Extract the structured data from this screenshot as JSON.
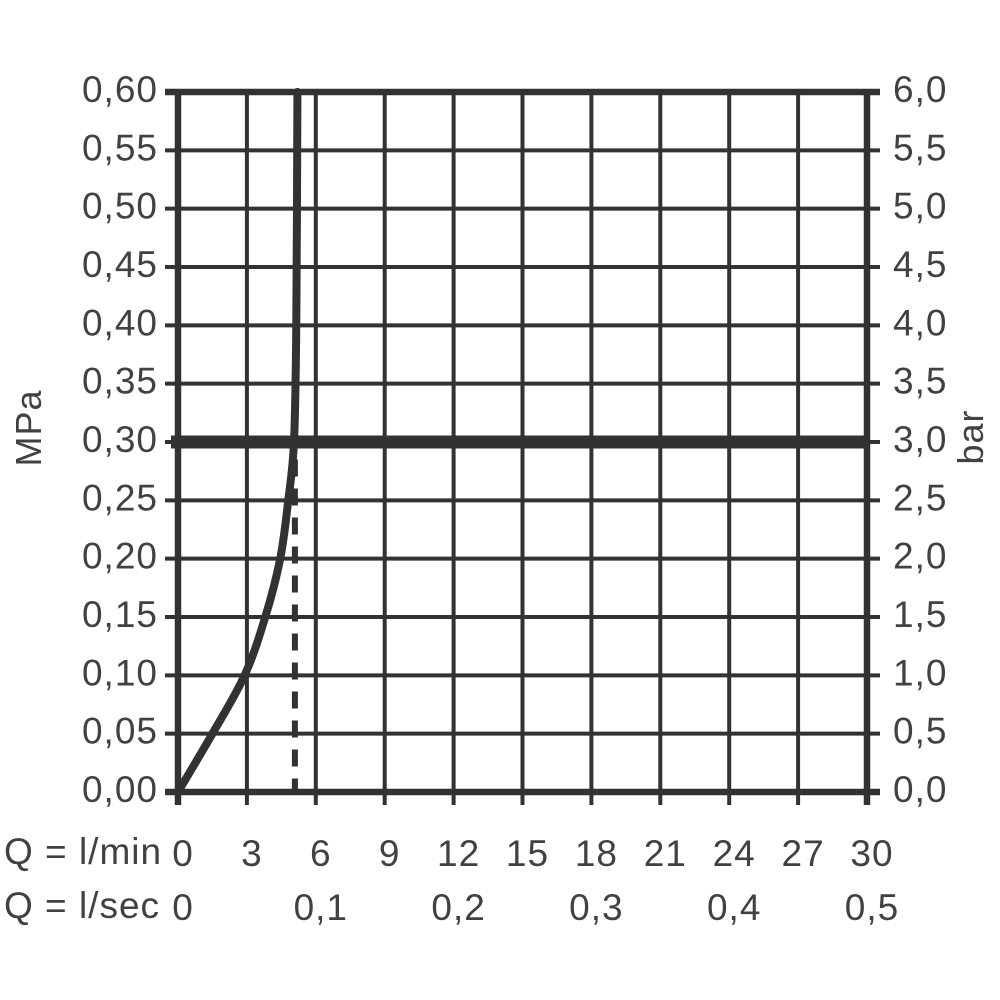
{
  "chart_data": {
    "type": "line",
    "title": "",
    "x": {
      "min": 0,
      "max": 30,
      "gridline_step": 3,
      "rows": [
        {
          "title": "Q = l/min",
          "ticks": [
            [
              0,
              "0"
            ],
            [
              3,
              "3"
            ],
            [
              6,
              "6"
            ],
            [
              9,
              "9"
            ],
            [
              12,
              "12"
            ],
            [
              15,
              "15"
            ],
            [
              18,
              "18"
            ],
            [
              21,
              "21"
            ],
            [
              24,
              "24"
            ],
            [
              27,
              "27"
            ],
            [
              30,
              "30"
            ]
          ]
        },
        {
          "title": "Q = l/sec",
          "ticks": [
            [
              0,
              "0"
            ],
            [
              6,
              "0,1"
            ],
            [
              12,
              "0,2"
            ],
            [
              18,
              "0,3"
            ],
            [
              24,
              "0,4"
            ],
            [
              30,
              "0,5"
            ]
          ]
        }
      ]
    },
    "y_left": {
      "unit": "MPa",
      "min": 0,
      "max": 0.6,
      "step": 0.05,
      "tick_labels": [
        "0,00",
        "0,05",
        "0,10",
        "0,15",
        "0,20",
        "0,25",
        "0,30",
        "0,35",
        "0,40",
        "0,45",
        "0,50",
        "0,55",
        "0,60"
      ]
    },
    "y_right": {
      "unit": "bar",
      "min": 0,
      "max": 6,
      "step": 0.5,
      "tick_labels": [
        "0,0",
        "0,5",
        "1,0",
        "1,5",
        "2,0",
        "2,5",
        "3,0",
        "3,5",
        "4,0",
        "4,5",
        "5,0",
        "5,5",
        "6,0"
      ]
    },
    "series": [
      {
        "name": "flow-pressure-curve",
        "style": "solid",
        "points": [
          [
            0,
            0
          ],
          [
            1.5,
            0.05
          ],
          [
            2.9,
            0.1
          ],
          [
            3.8,
            0.15
          ],
          [
            4.45,
            0.2
          ],
          [
            4.8,
            0.25
          ],
          [
            5.05,
            0.3
          ],
          [
            5.15,
            0.4
          ],
          [
            5.2,
            0.6
          ]
        ]
      }
    ],
    "reference_lines": {
      "horizontal_thick": {
        "y_mpa": 0.3,
        "y_bar": 3.0
      },
      "vertical_dashed": {
        "x_lmin": 5.09,
        "y_from_mpa": 0,
        "y_to_mpa": 0.285
      }
    },
    "grid": true,
    "legend": false,
    "colors": {
      "line": "#323235",
      "text": "#414144",
      "background": "#ffffff"
    }
  }
}
